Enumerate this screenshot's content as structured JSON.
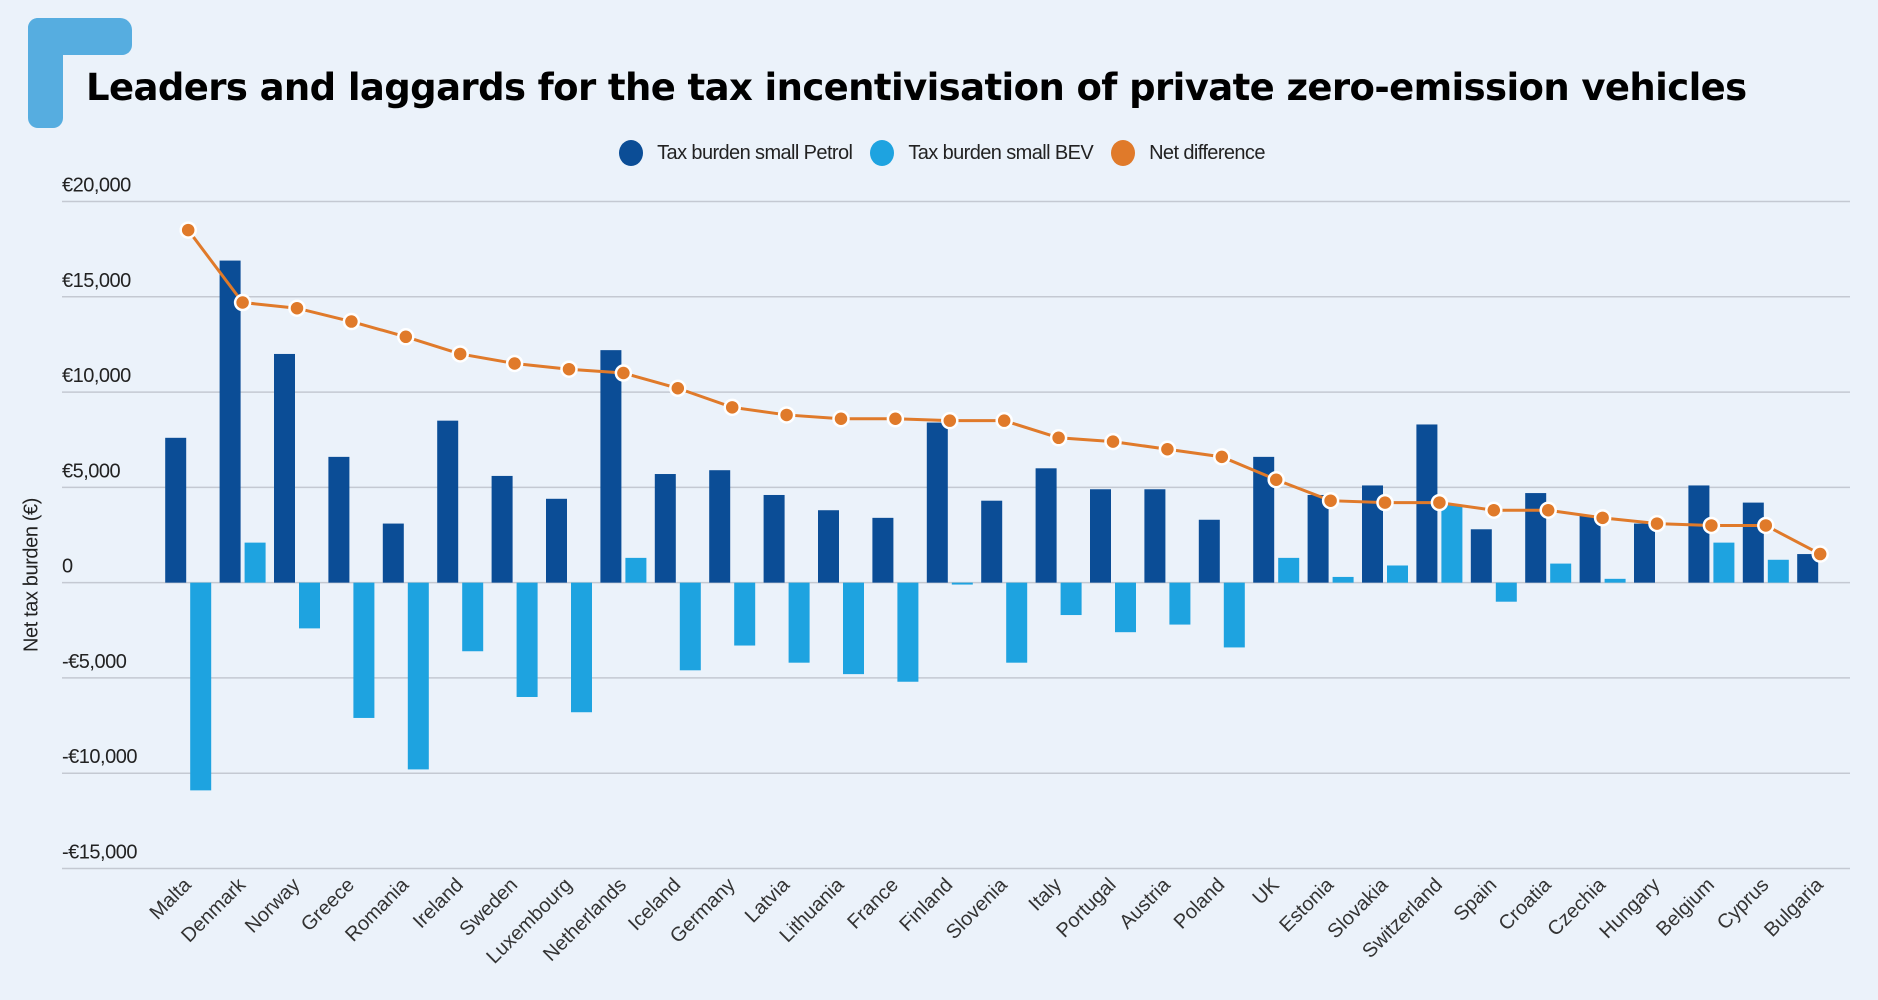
{
  "title": "Leaders and laggards for the tax incentivisation of private zero-emission vehicles",
  "legend": [
    {
      "label": "Tax burden small Petrol",
      "color": "#0B4D96"
    },
    {
      "label": "Tax burden small BEV",
      "color": "#1EA3E0"
    },
    {
      "label": "Net difference",
      "color": "#E07A2A"
    }
  ],
  "chart_data": {
    "type": "bar",
    "title": "Leaders and laggards for the tax incentivisation of private zero-emission vehicles",
    "xlabel": "",
    "ylabel": "Net tax burden (€)",
    "ylim": [
      -15000,
      20000
    ],
    "yticks": [
      20000,
      15000,
      10000,
      5000,
      0,
      -5000,
      -10000,
      -15000
    ],
    "ytick_labels": [
      "€20,000",
      "€15,000",
      "€10,000",
      "€5,000",
      "0",
      "-€5,000",
      "-€10,000",
      "-€15,000"
    ],
    "grid": true,
    "legend_position": "top-center",
    "categories": [
      "Malta",
      "Denmark",
      "Norway",
      "Greece",
      "Romania",
      "Ireland",
      "Sweden",
      "Luxembourg",
      "Netherlands",
      "Iceland",
      "Germany",
      "Latvia",
      "Lithuania",
      "France",
      "Finland",
      "Slovenia",
      "Italy",
      "Portugal",
      "Austria",
      "Poland",
      "UK",
      "Estonia",
      "Slovakia",
      "Switzerland",
      "Spain",
      "Croatia",
      "Czechia",
      "Hungary",
      "Belgium",
      "Cyprus",
      "Bulgaria"
    ],
    "series": [
      {
        "name": "Tax burden small Petrol",
        "type": "bar",
        "color": "#0B4D96",
        "values": [
          7600,
          16900,
          12000,
          6600,
          3100,
          8500,
          5600,
          4400,
          12200,
          5700,
          5900,
          4600,
          3800,
          3400,
          8400,
          4300,
          6000,
          4900,
          4900,
          3300,
          6600,
          4600,
          5100,
          8300,
          2800,
          4700,
          3500,
          3100,
          5100,
          4200,
          1500
        ]
      },
      {
        "name": "Tax burden small BEV",
        "type": "bar",
        "color": "#1EA3E0",
        "values": [
          -10900,
          2100,
          -2400,
          -7100,
          -9800,
          -3600,
          -6000,
          -6800,
          1300,
          -4600,
          -3300,
          -4200,
          -4800,
          -5200,
          -100,
          -4200,
          -1700,
          -2600,
          -2200,
          -3400,
          1300,
          300,
          900,
          4100,
          -1000,
          1000,
          200,
          0,
          2100,
          1200,
          0
        ]
      },
      {
        "name": "Net difference",
        "type": "line",
        "color": "#E07A2A",
        "values": [
          18500,
          14700,
          14400,
          13700,
          12900,
          12000,
          11500,
          11200,
          11000,
          10200,
          9200,
          8800,
          8600,
          8600,
          8500,
          8500,
          7600,
          7400,
          7000,
          6600,
          5400,
          4300,
          4200,
          4200,
          3800,
          3800,
          3400,
          3100,
          3000,
          3000,
          1500
        ]
      }
    ]
  }
}
